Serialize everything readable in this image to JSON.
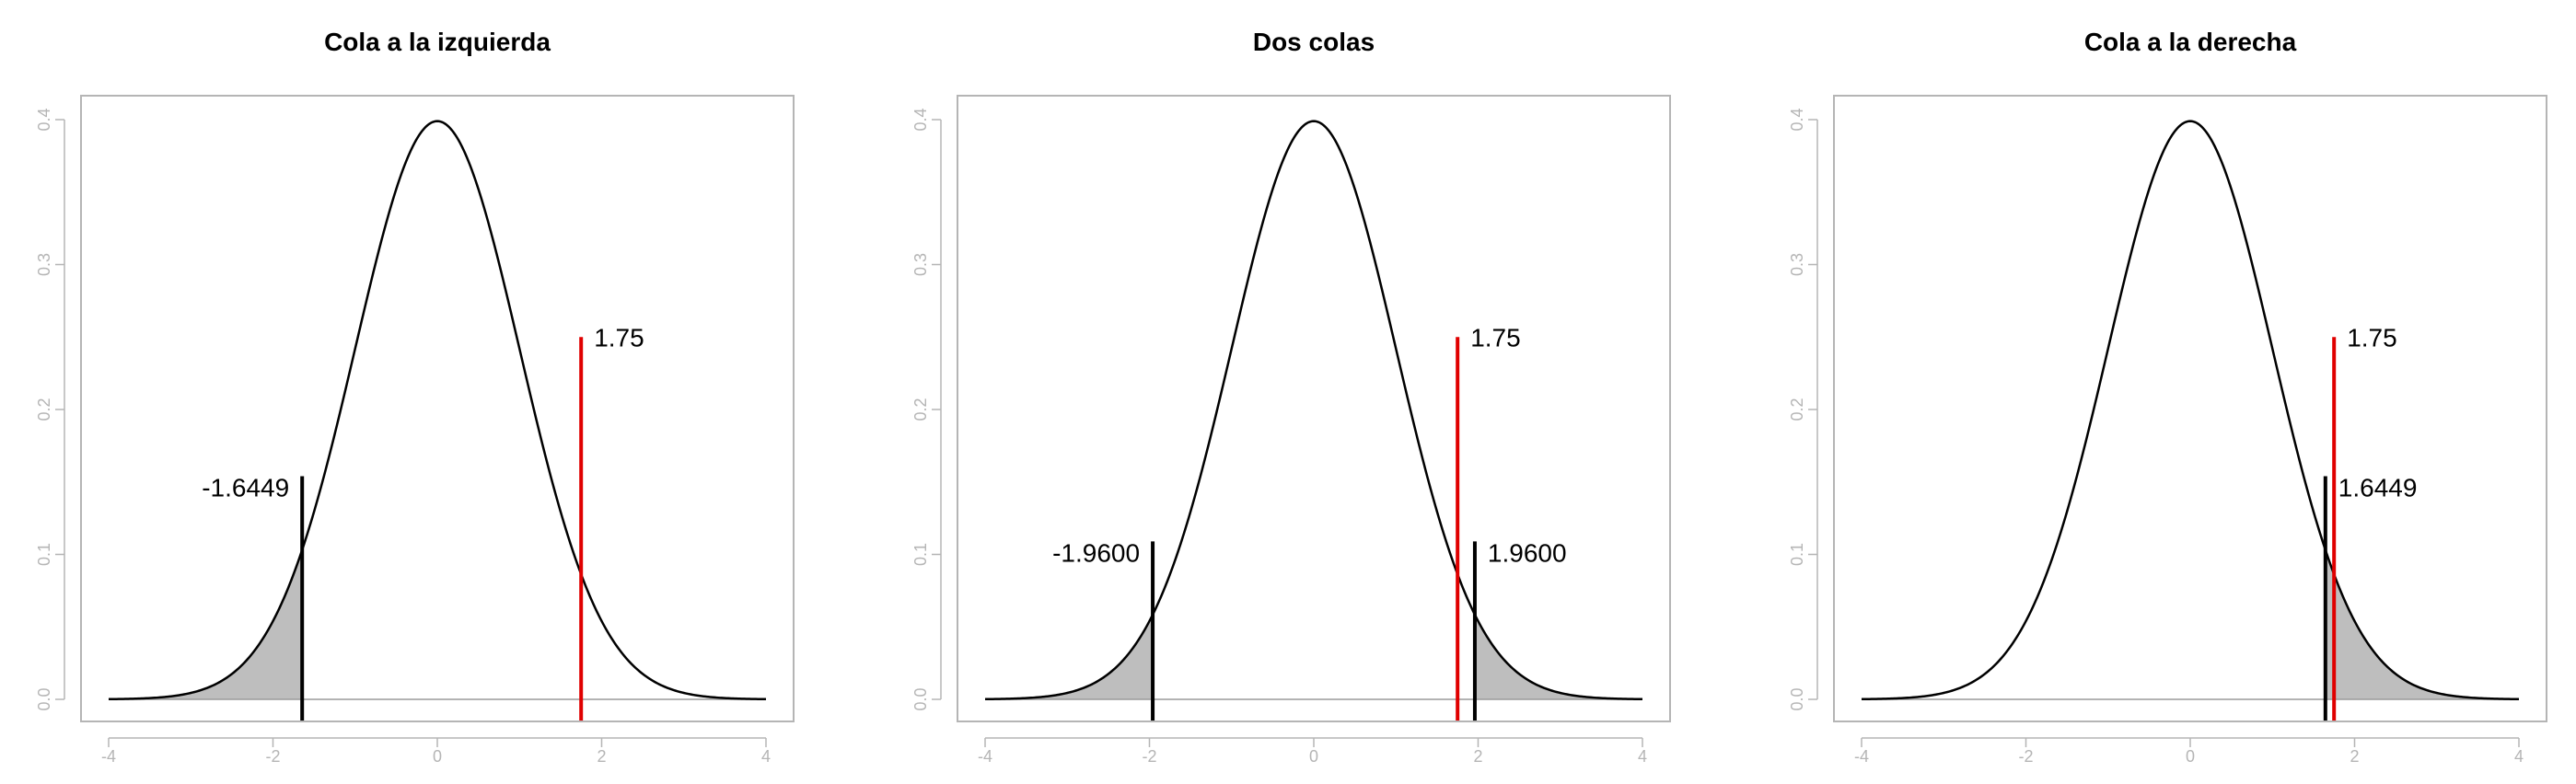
{
  "chart_data": [
    {
      "type": "line",
      "title": "Cola a la izquierda",
      "curve": "standard-normal-density",
      "xlim": [
        -4,
        4
      ],
      "ylim": [
        0,
        0.4
      ],
      "x_ticks": [
        "-4",
        "-2",
        "0",
        "2",
        "4"
      ],
      "y_ticks": [
        "0.0",
        "0.1",
        "0.2",
        "0.3",
        "0.4"
      ],
      "shaded_regions": [
        [
          -4,
          -1.6449
        ]
      ],
      "critical_lines": [
        {
          "x": -1.6449,
          "height": 0.154,
          "label": "-1.6449",
          "label_side": "left"
        }
      ],
      "stat_line": {
        "x": 1.75,
        "height": 0.25,
        "label": "1.75",
        "color": "#e00000"
      }
    },
    {
      "type": "line",
      "title": "Dos colas",
      "curve": "standard-normal-density",
      "xlim": [
        -4,
        4
      ],
      "ylim": [
        0,
        0.4
      ],
      "x_ticks": [
        "-4",
        "-2",
        "0",
        "2",
        "4"
      ],
      "y_ticks": [
        "0.0",
        "0.1",
        "0.2",
        "0.3",
        "0.4"
      ],
      "shaded_regions": [
        [
          -4,
          -1.96
        ],
        [
          1.96,
          4
        ]
      ],
      "critical_lines": [
        {
          "x": -1.96,
          "height": 0.109,
          "label": "-1.9600",
          "label_side": "left"
        },
        {
          "x": 1.96,
          "height": 0.109,
          "label": "1.9600",
          "label_side": "right"
        }
      ],
      "stat_line": {
        "x": 1.75,
        "height": 0.25,
        "label": "1.75",
        "color": "#e00000"
      }
    },
    {
      "type": "line",
      "title": "Cola a la derecha",
      "curve": "standard-normal-density",
      "xlim": [
        -4,
        4
      ],
      "ylim": [
        0,
        0.4
      ],
      "x_ticks": [
        "-4",
        "-2",
        "0",
        "2",
        "4"
      ],
      "y_ticks": [
        "0.0",
        "0.1",
        "0.2",
        "0.3",
        "0.4"
      ],
      "shaded_regions": [
        [
          1.6449,
          4
        ]
      ],
      "critical_lines": [
        {
          "x": 1.6449,
          "height": 0.154,
          "label": "1.6449",
          "label_side": "right"
        }
      ],
      "stat_line": {
        "x": 1.75,
        "height": 0.25,
        "label": "1.75",
        "color": "#e00000"
      }
    }
  ],
  "colors": {
    "curve": "#000000",
    "shade": "#bebebe",
    "frame": "#b5b5b5",
    "stat": "#e00000"
  }
}
